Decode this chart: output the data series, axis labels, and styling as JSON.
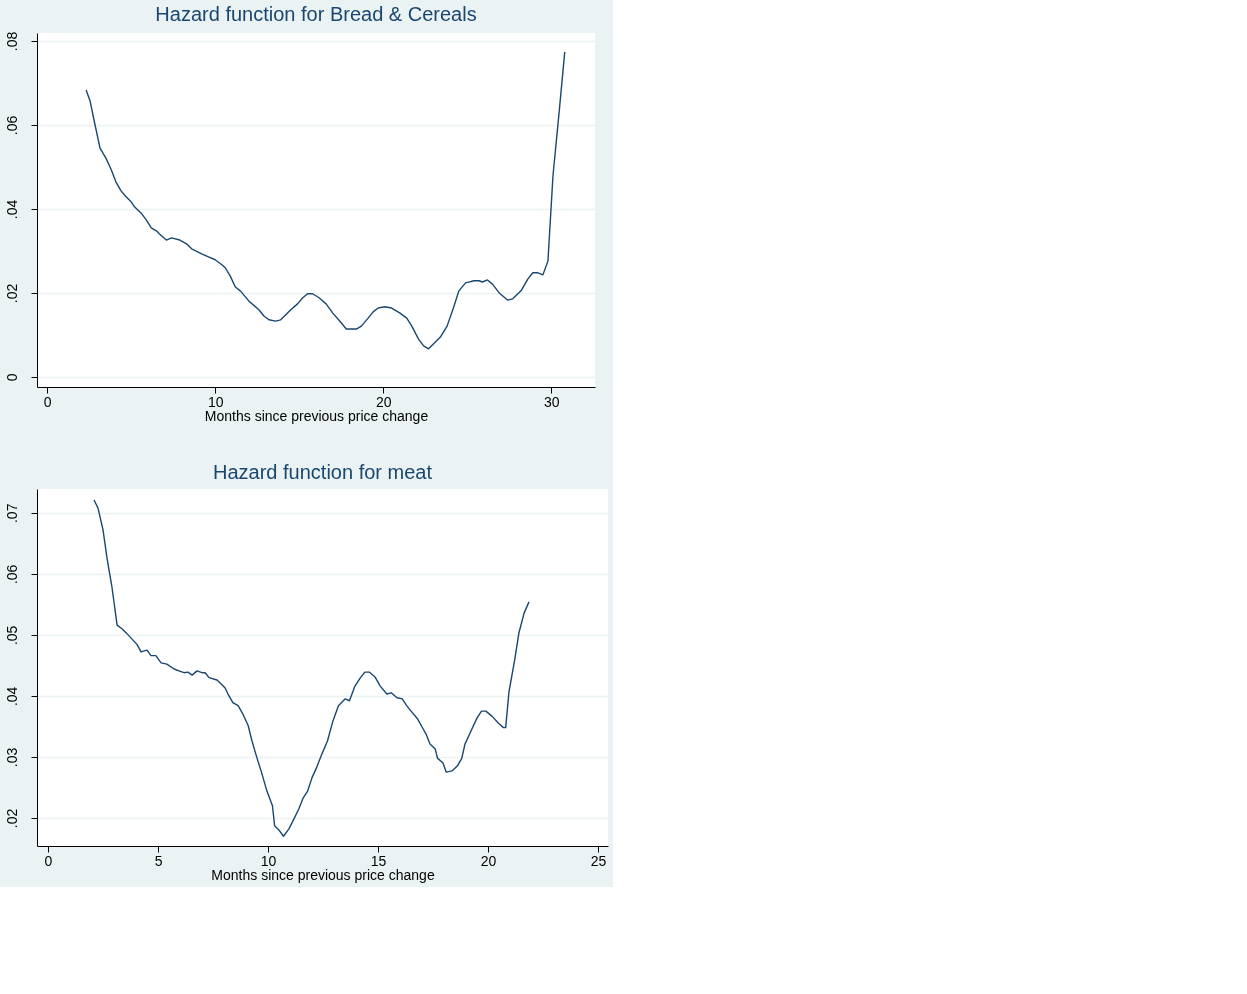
{
  "chart_data": [
    {
      "type": "line",
      "title": "Hazard function for Bread & Cereals",
      "xlabel": "Months since previous price change",
      "x": [
        2.32,
        2.56,
        2.8,
        3.15,
        3.5,
        3.8,
        4.1,
        4.4,
        4.7,
        5.0,
        5.2,
        5.6,
        5.9,
        6.2,
        6.5,
        6.8,
        7.1,
        7.4,
        7.9,
        8.3,
        8.6,
        9.2,
        9.6,
        10,
        10.4,
        10.6,
        10.9,
        11.2,
        11.5,
        12,
        12.6,
        12.9,
        13.2,
        13.6,
        13.9,
        14.2,
        14.5,
        14.9,
        15.2,
        15.5,
        15.8,
        16.2,
        16.6,
        17,
        17.5,
        17.8,
        18.4,
        18.7,
        19.1,
        19.4,
        19.7,
        20.1,
        20.5,
        21,
        21.4,
        21.7,
        22.1,
        22.4,
        22.7,
        23,
        23.4,
        23.8,
        24.2,
        24.5,
        24.9,
        25.4,
        25.7,
        25.9,
        26.2,
        26.5,
        26.9,
        27.4,
        27.7,
        28.2,
        28.6,
        28.9,
        29.2,
        29.5,
        29.8,
        30.1,
        30.5,
        30.8
      ],
      "series": [
        {
          "color": "#1a476f",
          "values": [
            0.0683,
            0.0657,
            0.061,
            0.0545,
            0.0521,
            0.0495,
            0.0464,
            0.0443,
            0.0429,
            0.0417,
            0.0405,
            0.039,
            0.0374,
            0.0355,
            0.0348,
            0.0336,
            0.0326,
            0.0331,
            0.0326,
            0.0317,
            0.0305,
            0.0293,
            0.0286,
            0.0279,
            0.0267,
            0.026,
            0.024,
            0.0214,
            0.0205,
            0.0181,
            0.016,
            0.0145,
            0.0136,
            0.0133,
            0.0136,
            0.0148,
            0.016,
            0.0174,
            0.0188,
            0.0198,
            0.0198,
            0.0188,
            0.0174,
            0.0152,
            0.0129,
            0.0114,
            0.0114,
            0.0121,
            0.014,
            0.0155,
            0.0164,
            0.0167,
            0.0164,
            0.0152,
            0.014,
            0.0121,
            0.009,
            0.0074,
            0.0067,
            0.0079,
            0.0095,
            0.0121,
            0.0167,
            0.0205,
            0.0224,
            0.0229,
            0.0229,
            0.0226,
            0.0231,
            0.0221,
            0.02,
            0.0183,
            0.0186,
            0.0205,
            0.0233,
            0.0248,
            0.0248,
            0.0243,
            0.0276,
            0.0479,
            0.0645,
            0.0774
          ]
        }
      ],
      "xlim": [
        -0.6,
        32.6
      ],
      "xticks": [
        0,
        10,
        20,
        30
      ],
      "ylim": [
        -0.0024,
        0.0819
      ],
      "yticks": [
        0,
        {
          "value": 0.02,
          "label": ".02"
        },
        {
          "value": 0.04,
          "label": ".04"
        },
        {
          "value": 0.06,
          "label": ".06"
        },
        {
          "value": 0.08,
          "label": ".08"
        }
      ],
      "grid": "y",
      "line_style": "solid",
      "marker": "none"
    },
    {
      "type": "line",
      "title": "Hazard function for meat",
      "xlabel": "Months since previous price change",
      "x": [
        2.09,
        2.27,
        2.5,
        2.68,
        2.9,
        3.14,
        3.36,
        3.59,
        3.82,
        4.05,
        4.23,
        4.5,
        4.68,
        4.9,
        5.14,
        5.4,
        5.73,
        5.95,
        6.18,
        6.36,
        6.55,
        6.77,
        7,
        7.14,
        7.32,
        7.68,
        7.86,
        8.05,
        8.18,
        8.4,
        8.64,
        8.86,
        9.1,
        9.27,
        9.5,
        9.7,
        9.95,
        10.2,
        10.3,
        10.5,
        10.7,
        10.95,
        11.2,
        11.4,
        11.6,
        11.8,
        12,
        12.2,
        12.45,
        12.7,
        12.95,
        13.2,
        13.5,
        13.7,
        13.95,
        14.2,
        14.4,
        14.6,
        14.86,
        15.1,
        15.4,
        15.6,
        15.86,
        16.1,
        16.3,
        16.5,
        16.8,
        17,
        17.2,
        17.36,
        17.6,
        17.7,
        17.95,
        18.1,
        18.36,
        18.6,
        18.8,
        18.95,
        19.27,
        19.5,
        19.7,
        19.9,
        20.2,
        20.45,
        20.7,
        20.8,
        20.95,
        21.2,
        21.4,
        21.64,
        21.86
      ],
      "series": [
        {
          "color": "#1a476f",
          "values": [
            0.0721,
            0.0708,
            0.0672,
            0.0626,
            0.058,
            0.0516,
            0.051,
            0.0502,
            0.0493,
            0.0484,
            0.0472,
            0.0475,
            0.0466,
            0.0466,
            0.0454,
            0.0452,
            0.0444,
            0.0441,
            0.0438,
            0.0439,
            0.0434,
            0.0441,
            0.0438,
            0.0438,
            0.043,
            0.0426,
            0.042,
            0.0413,
            0.0403,
            0.0389,
            0.0384,
            0.037,
            0.0351,
            0.0326,
            0.0298,
            0.0275,
            0.0244,
            0.022,
            0.0187,
            0.018,
            0.017,
            0.0182,
            0.02,
            0.0215,
            0.0233,
            0.0244,
            0.0266,
            0.0282,
            0.0305,
            0.0326,
            0.0359,
            0.0384,
            0.0395,
            0.0392,
            0.0416,
            0.043,
            0.0439,
            0.0439,
            0.0431,
            0.0416,
            0.0403,
            0.0405,
            0.0397,
            0.0395,
            0.0384,
            0.0375,
            0.0362,
            0.0349,
            0.0336,
            0.0321,
            0.0313,
            0.0298,
            0.029,
            0.0275,
            0.0277,
            0.0285,
            0.0297,
            0.0321,
            0.0346,
            0.0364,
            0.0375,
            0.0375,
            0.0366,
            0.0356,
            0.0348,
            0.0348,
            0.0407,
            0.0457,
            0.0503,
            0.0536,
            0.0554
          ]
        }
      ],
      "xlim": [
        -0.5,
        25.45
      ],
      "xticks": [
        0,
        5,
        10,
        15,
        20,
        25
      ],
      "ylim": [
        0.0154,
        0.0739
      ],
      "yticks": [
        {
          "value": 0.02,
          "label": ".02"
        },
        {
          "value": 0.03,
          "label": ".03"
        },
        {
          "value": 0.04,
          "label": ".04"
        },
        {
          "value": 0.05,
          "label": ".05"
        },
        {
          "value": 0.06,
          "label": ".06"
        },
        {
          "value": 0.07,
          "label": ".07"
        }
      ],
      "grid": "y",
      "line_style": "solid",
      "marker": "none"
    }
  ]
}
